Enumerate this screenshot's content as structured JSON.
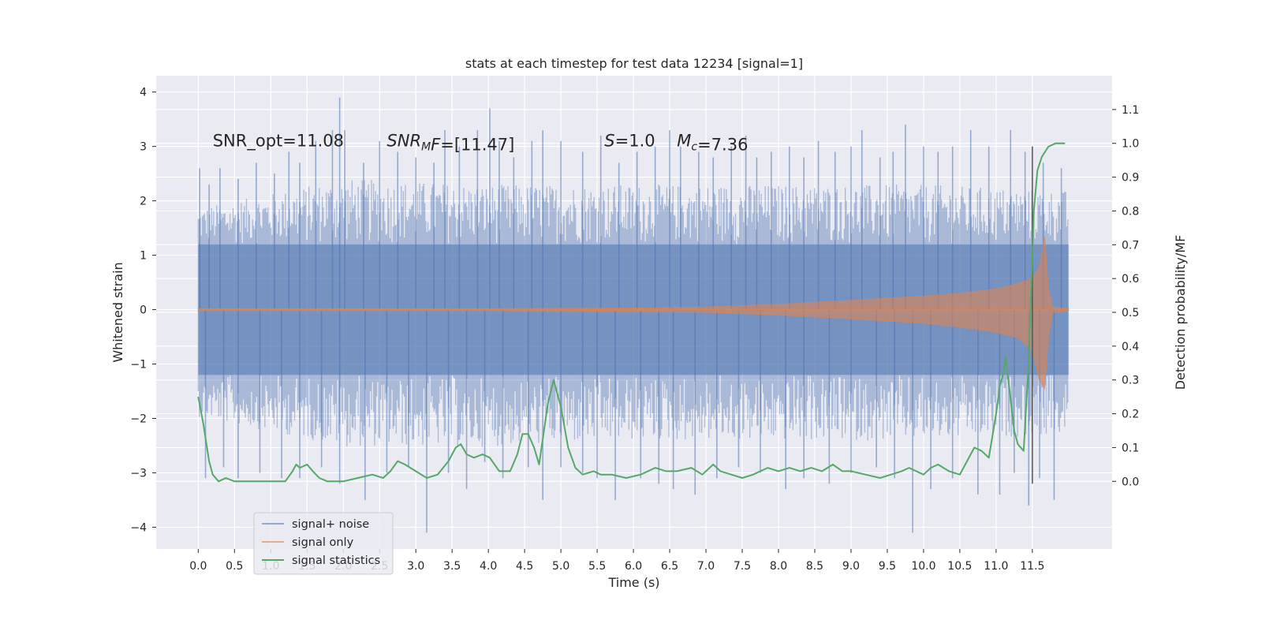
{
  "chart_data": {
    "type": "line",
    "title": "stats at each timestep for test data 12234 [signal=1]",
    "xlabel": "Time (s)",
    "ylabel": "Whitened strain",
    "ylabel_right": "Detection probability/MF",
    "xlim": [
      -0.58,
      12.6
    ],
    "ylim": [
      -4.4,
      4.3
    ],
    "ylim_right": [
      -0.2,
      1.2
    ],
    "x_ticks": [
      0.0,
      0.5,
      1.0,
      1.5,
      2.0,
      2.5,
      3.0,
      3.5,
      4.0,
      4.5,
      5.0,
      5.5,
      6.0,
      6.5,
      7.0,
      7.5,
      8.0,
      8.5,
      9.0,
      9.5,
      10.0,
      10.5,
      11.0,
      11.5
    ],
    "x_tick_labels": [
      "0.0",
      "0.5",
      "1.0",
      "1.5",
      "2.0",
      "2.5",
      "3.0",
      "3.5",
      "4.0",
      "4.5",
      "5.0",
      "5.5",
      "6.0",
      "6.5",
      "7.0",
      "7.5",
      "8.0",
      "8.5",
      "9.0",
      "9.5",
      "10.0",
      "10.5",
      "11.0",
      "11.5"
    ],
    "y_ticks": [
      4,
      3,
      2,
      1,
      0,
      -1,
      -2,
      -3,
      -4
    ],
    "y_tick_labels": [
      "4",
      "3",
      "2",
      "1",
      "0",
      "−1",
      "−2",
      "−3",
      "−4"
    ],
    "y_right_ticks": [
      1.1,
      1.0,
      0.9,
      0.8,
      0.7,
      0.6,
      0.5,
      0.4,
      0.3,
      0.2,
      0.1,
      0.0
    ],
    "y_right_tick_labels": [
      "1.1",
      "1.0",
      "0.9",
      "0.8",
      "0.7",
      "0.6",
      "0.5",
      "0.4",
      "0.3",
      "0.2",
      "0.1",
      "0.0"
    ],
    "grid": true,
    "legend_position": "lower-left",
    "style": {
      "background": "#eaeaf2",
      "grid_color": "#ffffff",
      "noise_color": "#4c72b0",
      "signal_color": "#dd8452",
      "stat_color": "#55a868",
      "marker_color": "#555555"
    },
    "annotations": [
      {
        "x": 0.2,
        "y": 3.0,
        "parts": [
          {
            "t": "SNR_opt=11.08",
            "i": false
          }
        ]
      },
      {
        "x": 2.6,
        "y": 3.0,
        "parts": [
          {
            "t": "SNR",
            "i": true
          },
          {
            "t": "M",
            "i": true,
            "sub": true
          },
          {
            "t": "F",
            "i": true
          },
          {
            "t": "=[11.47]",
            "i": false
          }
        ]
      },
      {
        "x": 5.6,
        "y": 3.0,
        "parts": [
          {
            "t": "S",
            "i": true
          },
          {
            "t": "=1.0",
            "i": false
          }
        ]
      },
      {
        "x": 6.6,
        "y": 3.0,
        "parts": [
          {
            "t": "M",
            "i": true
          },
          {
            "t": "c",
            "i": true,
            "sub": true
          },
          {
            "t": "=7.36",
            "i": false
          }
        ]
      }
    ],
    "marker_line": {
      "x": 11.5,
      "y": [
        -3.2,
        3.0
      ]
    },
    "series": [
      {
        "name": "signal+ noise",
        "kind": "noise_band",
        "x_range": [
          0.0,
          12.0
        ],
        "band_range": [
          -1.2,
          1.2
        ],
        "envelope": [
          {
            "x": 0.0,
            "upper": 1.8,
            "lower": -1.9
          },
          {
            "x": 2.0,
            "upper": 2.3,
            "lower": -2.4
          },
          {
            "x": 4.0,
            "upper": 2.2,
            "lower": -2.4
          },
          {
            "x": 6.0,
            "upper": 2.2,
            "lower": -2.3
          },
          {
            "x": 8.0,
            "upper": 2.2,
            "lower": -2.3
          },
          {
            "x": 10.0,
            "upper": 2.2,
            "lower": -2.3
          },
          {
            "x": 12.0,
            "upper": 2.1,
            "lower": -2.2
          }
        ],
        "spikes": [
          [
            0.02,
            2.6
          ],
          [
            0.15,
            2.3
          ],
          [
            0.3,
            2.6
          ],
          [
            0.55,
            2.4
          ],
          [
            0.8,
            2.7
          ],
          [
            1.05,
            2.5
          ],
          [
            1.25,
            2.9
          ],
          [
            1.4,
            2.7
          ],
          [
            1.62,
            3.1
          ],
          [
            1.85,
            3.3
          ],
          [
            1.95,
            3.9
          ],
          [
            2.02,
            3.3
          ],
          [
            2.28,
            2.7
          ],
          [
            2.5,
            3.1
          ],
          [
            2.75,
            2.9
          ],
          [
            3.0,
            2.8
          ],
          [
            3.25,
            2.7
          ],
          [
            3.4,
            3.3
          ],
          [
            3.6,
            3.0
          ],
          [
            3.85,
            3.3
          ],
          [
            4.02,
            3.7
          ],
          [
            4.15,
            3.1
          ],
          [
            4.35,
            2.8
          ],
          [
            4.6,
            3.1
          ],
          [
            4.75,
            3.3
          ],
          [
            5.0,
            3.1
          ],
          [
            5.3,
            2.9
          ],
          [
            5.55,
            3.2
          ],
          [
            5.8,
            2.7
          ],
          [
            6.05,
            2.9
          ],
          [
            6.3,
            3.0
          ],
          [
            6.5,
            3.3
          ],
          [
            6.65,
            3.0
          ],
          [
            6.9,
            2.9
          ],
          [
            7.1,
            2.8
          ],
          [
            7.35,
            3.0
          ],
          [
            7.55,
            3.2
          ],
          [
            7.7,
            2.8
          ],
          [
            7.9,
            2.9
          ],
          [
            8.15,
            3.0
          ],
          [
            8.35,
            2.8
          ],
          [
            8.55,
            3.1
          ],
          [
            8.78,
            2.9
          ],
          [
            9.0,
            3.0
          ],
          [
            9.15,
            3.3
          ],
          [
            9.4,
            2.8
          ],
          [
            9.58,
            2.9
          ],
          [
            9.75,
            3.4
          ],
          [
            10.0,
            3.0
          ],
          [
            10.2,
            2.9
          ],
          [
            10.4,
            3.0
          ],
          [
            10.65,
            3.3
          ],
          [
            10.9,
            3.0
          ],
          [
            11.2,
            3.3
          ],
          [
            11.4,
            2.9
          ],
          [
            11.65,
            2.7
          ],
          [
            11.9,
            2.6
          ],
          [
            0.1,
            -3.1
          ],
          [
            0.35,
            -2.9
          ],
          [
            0.55,
            -3.1
          ],
          [
            0.85,
            -3.0
          ],
          [
            1.15,
            -3.1
          ],
          [
            1.4,
            -3.1
          ],
          [
            1.7,
            -2.9
          ],
          [
            1.95,
            -3.2
          ],
          [
            2.3,
            -3.5
          ],
          [
            2.6,
            -3.0
          ],
          [
            2.9,
            -2.9
          ],
          [
            3.15,
            -4.1
          ],
          [
            3.45,
            -3.0
          ],
          [
            3.7,
            -3.3
          ],
          [
            3.95,
            -2.8
          ],
          [
            4.2,
            -3.1
          ],
          [
            4.55,
            -2.9
          ],
          [
            4.75,
            -3.5
          ],
          [
            5.0,
            -2.9
          ],
          [
            5.3,
            -3.0
          ],
          [
            5.5,
            -3.1
          ],
          [
            5.75,
            -3.5
          ],
          [
            6.1,
            -3.1
          ],
          [
            6.35,
            -3.2
          ],
          [
            6.55,
            -3.3
          ],
          [
            6.85,
            -3.4
          ],
          [
            7.15,
            -3.1
          ],
          [
            7.45,
            -2.9
          ],
          [
            7.75,
            -3.0
          ],
          [
            8.1,
            -3.3
          ],
          [
            8.35,
            -3.1
          ],
          [
            8.7,
            -3.2
          ],
          [
            9.0,
            -3.0
          ],
          [
            9.35,
            -2.9
          ],
          [
            9.6,
            -3.1
          ],
          [
            9.85,
            -4.1
          ],
          [
            10.1,
            -3.3
          ],
          [
            10.4,
            -3.1
          ],
          [
            10.75,
            -3.4
          ],
          [
            11.05,
            -3.4
          ],
          [
            11.25,
            -3.0
          ],
          [
            11.45,
            -3.6
          ],
          [
            11.6,
            -3.1
          ],
          [
            11.8,
            -3.5
          ]
        ]
      },
      {
        "name": "signal only",
        "kind": "chirp",
        "x_range": [
          0.0,
          12.0
        ],
        "envelope": [
          {
            "x": 0.0,
            "upper": 0.02,
            "lower": -0.02
          },
          {
            "x": 4.0,
            "upper": 0.02,
            "lower": -0.02
          },
          {
            "x": 6.0,
            "upper": 0.03,
            "lower": -0.03
          },
          {
            "x": 7.0,
            "upper": 0.05,
            "lower": -0.05
          },
          {
            "x": 8.0,
            "upper": 0.1,
            "lower": -0.1
          },
          {
            "x": 9.0,
            "upper": 0.17,
            "lower": -0.17
          },
          {
            "x": 10.0,
            "upper": 0.25,
            "lower": -0.25
          },
          {
            "x": 10.5,
            "upper": 0.3,
            "lower": -0.32
          },
          {
            "x": 11.0,
            "upper": 0.38,
            "lower": -0.42
          },
          {
            "x": 11.3,
            "upper": 0.48,
            "lower": -0.52
          },
          {
            "x": 11.5,
            "upper": 0.58,
            "lower": -0.75
          },
          {
            "x": 11.6,
            "upper": 0.8,
            "lower": -1.3
          },
          {
            "x": 11.67,
            "upper": 1.35,
            "lower": -1.45
          },
          {
            "x": 11.72,
            "upper": 0.4,
            "lower": -0.5
          },
          {
            "x": 11.78,
            "upper": 0.05,
            "lower": -0.05
          },
          {
            "x": 12.0,
            "upper": 0.02,
            "lower": -0.02
          }
        ]
      },
      {
        "name": "signal statistics",
        "kind": "line",
        "axis": "right",
        "x": [
          0.0,
          0.07,
          0.15,
          0.2,
          0.28,
          0.38,
          0.5,
          0.7,
          1.0,
          1.2,
          1.3,
          1.35,
          1.4,
          1.5,
          1.58,
          1.67,
          1.78,
          2.0,
          2.2,
          2.4,
          2.55,
          2.65,
          2.75,
          2.85,
          3.0,
          3.15,
          3.3,
          3.45,
          3.55,
          3.62,
          3.7,
          3.8,
          3.92,
          4.02,
          4.15,
          4.3,
          4.4,
          4.47,
          4.55,
          4.63,
          4.7,
          4.82,
          4.9,
          5.0,
          5.1,
          5.2,
          5.3,
          5.45,
          5.55,
          5.7,
          5.9,
          6.1,
          6.3,
          6.45,
          6.6,
          6.8,
          6.95,
          7.1,
          7.2,
          7.35,
          7.5,
          7.65,
          7.85,
          8.0,
          8.15,
          8.3,
          8.45,
          8.6,
          8.75,
          8.88,
          9.0,
          9.2,
          9.4,
          9.55,
          9.7,
          9.8,
          10.0,
          10.1,
          10.2,
          10.35,
          10.5,
          10.6,
          10.7,
          10.8,
          10.9,
          11.0,
          11.05,
          11.1,
          11.13,
          11.18,
          11.25,
          11.3,
          11.38,
          11.45,
          11.48,
          11.52,
          11.57,
          11.63,
          11.72,
          11.82,
          11.95
        ],
        "y": [
          0.25,
          0.17,
          0.06,
          0.02,
          0.0,
          0.01,
          0.0,
          0.0,
          0.0,
          0.0,
          0.03,
          0.05,
          0.04,
          0.05,
          0.03,
          0.01,
          0.0,
          0.0,
          0.01,
          0.02,
          0.01,
          0.03,
          0.06,
          0.05,
          0.03,
          0.01,
          0.02,
          0.06,
          0.1,
          0.11,
          0.08,
          0.07,
          0.08,
          0.07,
          0.03,
          0.03,
          0.08,
          0.14,
          0.14,
          0.1,
          0.05,
          0.23,
          0.3,
          0.22,
          0.1,
          0.04,
          0.02,
          0.03,
          0.02,
          0.02,
          0.01,
          0.02,
          0.04,
          0.03,
          0.03,
          0.04,
          0.02,
          0.05,
          0.03,
          0.02,
          0.01,
          0.02,
          0.04,
          0.03,
          0.04,
          0.03,
          0.04,
          0.03,
          0.05,
          0.03,
          0.03,
          0.02,
          0.01,
          0.02,
          0.03,
          0.04,
          0.02,
          0.04,
          0.05,
          0.03,
          0.02,
          0.06,
          0.1,
          0.09,
          0.07,
          0.2,
          0.28,
          0.32,
          0.37,
          0.28,
          0.15,
          0.11,
          0.09,
          0.35,
          0.55,
          0.8,
          0.92,
          0.96,
          0.99,
          1.0,
          1.0
        ]
      }
    ]
  }
}
